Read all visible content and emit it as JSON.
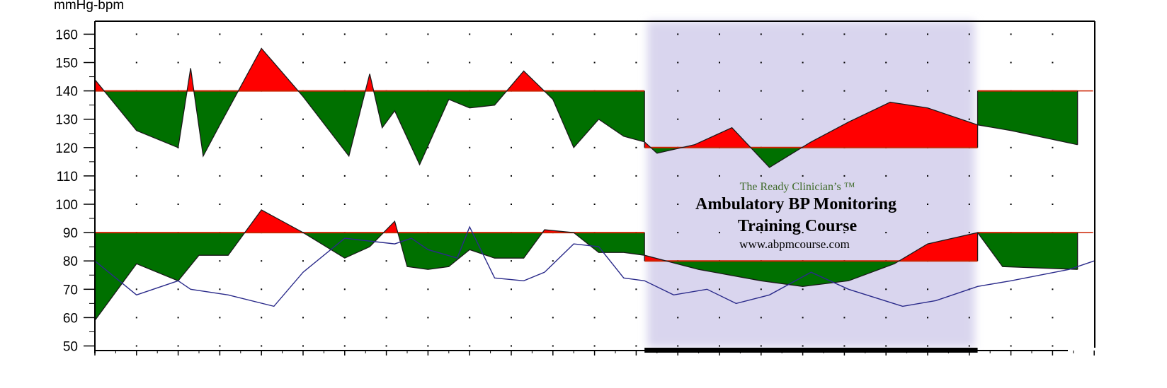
{
  "chart_data": {
    "type": "area",
    "ylabel": "mmHg-bpm",
    "ylim": [
      48,
      165
    ],
    "yticks": [
      50,
      60,
      70,
      80,
      90,
      100,
      110,
      120,
      130,
      140,
      150,
      160
    ],
    "xlim": [
      0,
      24.2
    ],
    "grid": true,
    "night_period": {
      "start": 13.2,
      "end": 21.2
    },
    "series": [
      {
        "key": "systolic",
        "thresholds": [
          {
            "from": 0,
            "to": 13.2,
            "value": 140
          },
          {
            "from": 13.2,
            "to": 21.2,
            "value": 120
          },
          {
            "from": 21.2,
            "to": 23.6,
            "value": 140
          }
        ],
        "x": [
          0,
          1,
          2,
          2.3,
          2.6,
          3,
          4,
          5,
          6.1,
          6.6,
          6.9,
          7.2,
          7.8,
          8.5,
          9.0,
          9.6,
          10.3,
          11,
          11.5,
          12.1,
          12.7,
          13.2,
          13.5,
          14.4,
          15.3,
          16.2,
          17.2,
          18.1,
          19.1,
          20.0,
          21.2,
          22.0,
          23.6
        ],
        "y": [
          144,
          126,
          120,
          148,
          117,
          128,
          155,
          138,
          117,
          146,
          127,
          133,
          114,
          137,
          134,
          135,
          147,
          137,
          120,
          130,
          124,
          122,
          118,
          121,
          127,
          113,
          122,
          129,
          136,
          134,
          128,
          126,
          121
        ]
      },
      {
        "key": "diastolic",
        "thresholds": [
          {
            "from": 0,
            "to": 13.2,
            "value": 90
          },
          {
            "from": 13.2,
            "to": 21.2,
            "value": 80
          },
          {
            "from": 21.2,
            "to": 23.6,
            "value": 90
          }
        ],
        "x": [
          0,
          1,
          2,
          2.5,
          3.2,
          4,
          5,
          6,
          6.6,
          7.2,
          7.5,
          8,
          8.5,
          9.0,
          9.6,
          10.3,
          10.8,
          11.5,
          12.1,
          12.7,
          13.2,
          14.5,
          16.0,
          17.0,
          18.1,
          19.2,
          20.0,
          21.2,
          21.8,
          23.6
        ],
        "y": [
          59,
          79,
          73,
          82,
          82,
          98,
          90,
          81,
          85,
          94,
          78,
          77,
          78,
          84,
          81,
          81,
          91,
          90,
          83,
          83,
          82,
          77,
          73,
          71,
          73,
          79,
          86,
          90,
          78,
          77
        ]
      }
    ],
    "heart_rate": {
      "x": [
        0,
        1,
        2,
        2.3,
        3.2,
        4.3,
        5,
        6,
        7.2,
        7.6,
        8.0,
        8.7,
        9.0,
        9.6,
        10.3,
        10.8,
        11.5,
        12.1,
        12.7,
        13.2,
        13.9,
        14.7,
        15.4,
        16.2,
        17.2,
        18.1,
        19.4,
        20.2,
        21.2,
        22.0,
        23.4,
        24.0
      ],
      "y": [
        80,
        68,
        73,
        70,
        68,
        64,
        76,
        88,
        86,
        88,
        84,
        81,
        92,
        74,
        73,
        76,
        86,
        85,
        74,
        73,
        68,
        70,
        65,
        68,
        76,
        70,
        64,
        66,
        71,
        73,
        77,
        80
      ]
    },
    "colors": {
      "above_threshold": "#ff0000",
      "below_threshold": "#007000",
      "threshold_line": "#cc2200",
      "heart_rate_line": "#2a2a8a",
      "night_band": "#d9d5ee"
    }
  },
  "watermark": {
    "line1": "The Ready Clinician’s ™",
    "line2": "Ambulatory BP Monitoring",
    "line3": "Training Course",
    "line4": "www.abpmcourse.com"
  }
}
